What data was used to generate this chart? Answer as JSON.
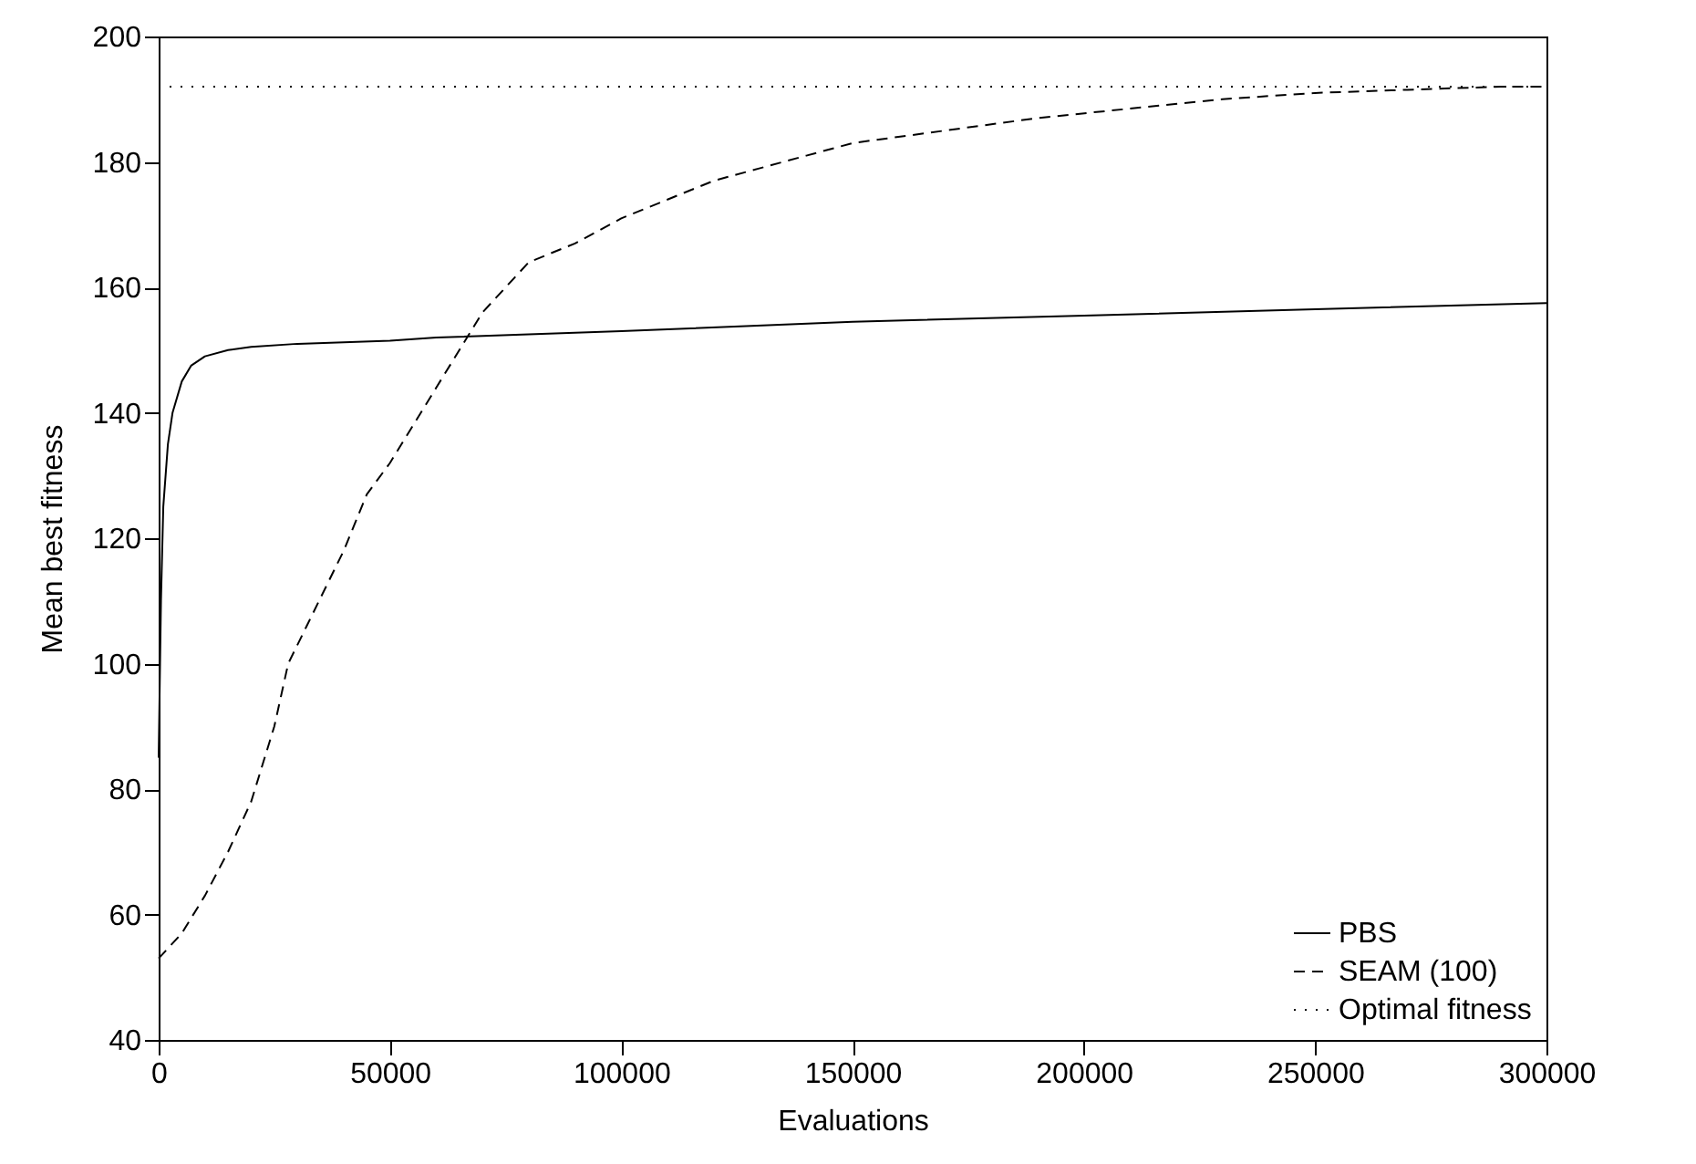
{
  "chart_data": {
    "type": "line",
    "xlabel": "Evaluations",
    "ylabel": "Mean best fitness",
    "xlim": [
      0,
      300000
    ],
    "xticks": [
      0,
      50000,
      100000,
      150000,
      200000,
      250000,
      300000
    ],
    "ylim": [
      40,
      200
    ],
    "yticks": [
      40,
      60,
      80,
      100,
      120,
      140,
      160,
      180,
      200
    ],
    "grid": false,
    "legend": "bottom right",
    "series": [
      {
        "name": "PBS",
        "color": "#000000",
        "line_style": "solid",
        "x": [
          0,
          500,
          1000,
          2000,
          3000,
          5000,
          7000,
          10000,
          15000,
          20000,
          30000,
          50000,
          60000,
          80000,
          100000,
          150000,
          200000,
          250000,
          300000
        ],
        "values": [
          85,
          110,
          125,
          135,
          140,
          145,
          147.5,
          149,
          150,
          150.5,
          151,
          151.5,
          152,
          152.5,
          153,
          154.5,
          155.5,
          156.5,
          157.5
        ]
      },
      {
        "name": "SEAM (100)",
        "color": "#000000",
        "line_style": "dashed",
        "x": [
          0,
          5000,
          10000,
          15000,
          20000,
          25000,
          28000,
          32000,
          40000,
          45000,
          50000,
          55000,
          60000,
          65000,
          70000,
          75000,
          80000,
          90000,
          100000,
          110000,
          120000,
          130000,
          140000,
          150000,
          170000,
          190000,
          210000,
          230000,
          250000,
          270000,
          290000,
          300000
        ],
        "values": [
          53,
          57,
          63,
          70,
          78,
          90,
          100,
          106,
          118,
          127,
          132,
          138,
          144,
          150,
          156,
          160,
          164,
          167,
          171,
          174,
          177,
          179,
          181,
          183,
          185,
          187,
          188.5,
          190,
          191,
          191.5,
          192,
          192
        ]
      },
      {
        "name": "Optimal fitness",
        "color": "#000000",
        "line_style": "dotted",
        "x": [
          0,
          300000
        ],
        "values": [
          192,
          192
        ]
      }
    ]
  }
}
